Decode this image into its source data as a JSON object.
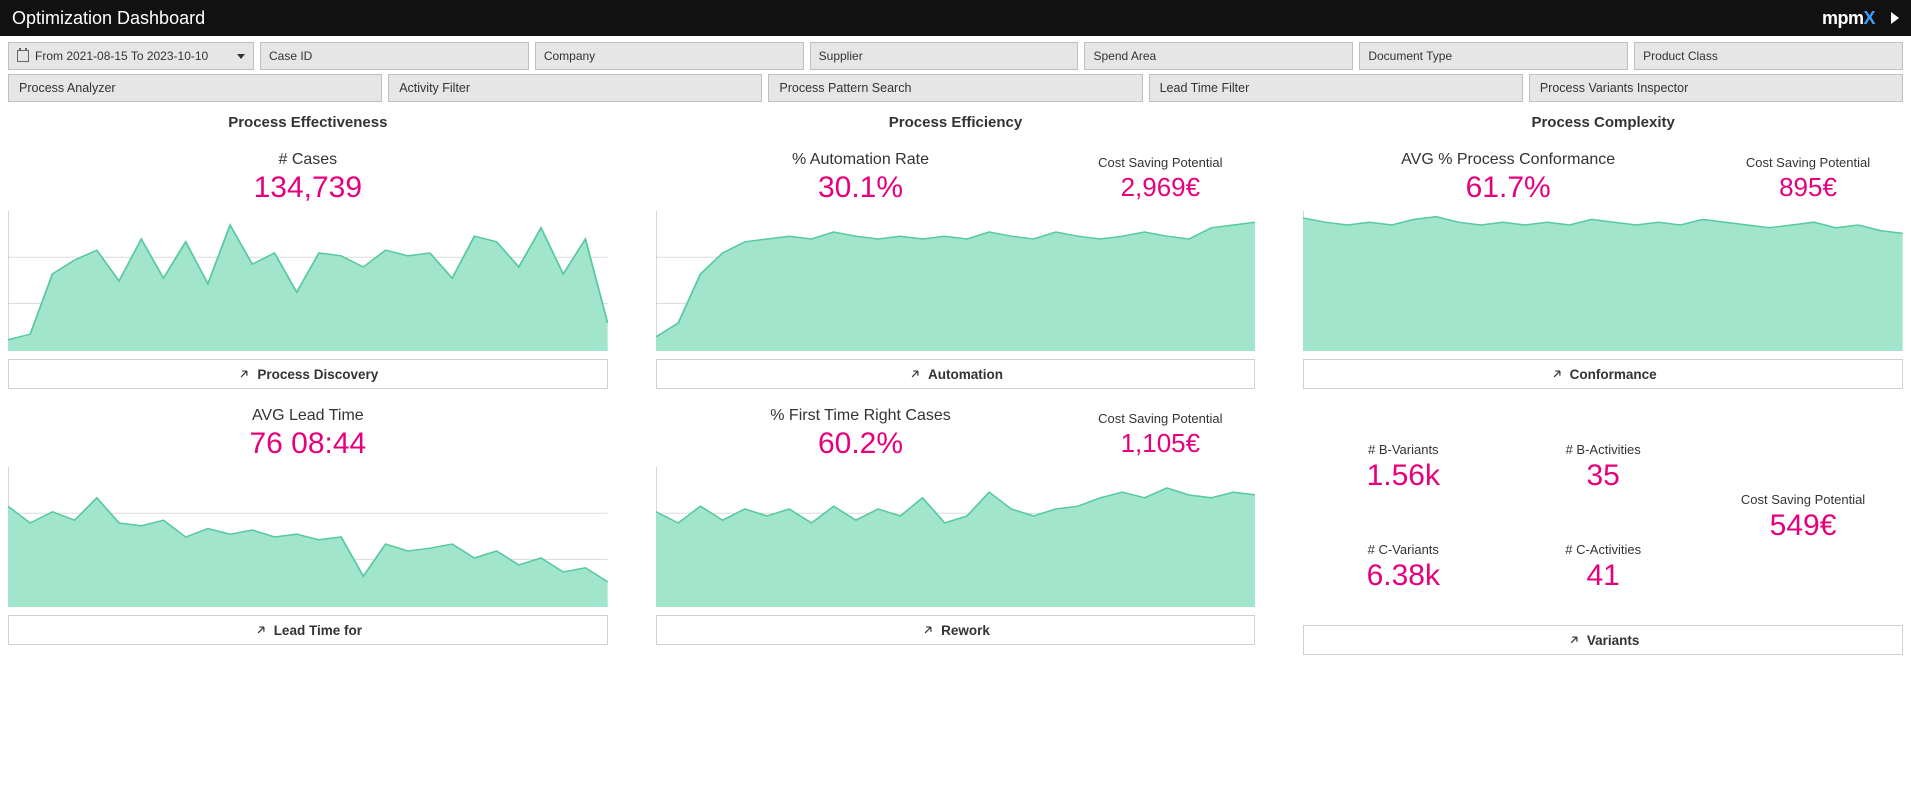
{
  "theme": {
    "accent": "#e6007e",
    "chart_fill": "#a1e6cc",
    "chart_stroke": "#58c9a0",
    "grid_color": "#dcdcdc",
    "axis_color": "#bfbfbf",
    "bg": "#ffffff"
  },
  "titlebar": {
    "title": "Optimization Dashboard",
    "logo_text": "mpm",
    "logo_x": "X"
  },
  "filters": {
    "date_text": "From 2021-08-15 To 2023-10-10",
    "fields": [
      "Case ID",
      "Company",
      "Supplier",
      "Spend Area",
      "Document Type",
      "Product Class"
    ]
  },
  "tools": [
    "Process Analyzer",
    "Activity Filter",
    "Process Pattern Search",
    "Lead Time Filter",
    "Process Variants Inspector"
  ],
  "sections": {
    "effectiveness": "Process Effectiveness",
    "efficiency": "Process Efficiency",
    "complexity": "Process Complexity"
  },
  "cost_saving_label": "Cost Saving Potential",
  "cards": {
    "cases": {
      "label": "# Cases",
      "value": "134,739",
      "link": "Process Discovery",
      "chart": {
        "type": "area",
        "ylim": [
          0,
          100
        ],
        "values": [
          8,
          12,
          55,
          65,
          72,
          50,
          80,
          52,
          78,
          48,
          90,
          62,
          70,
          42,
          70,
          68,
          60,
          72,
          68,
          70,
          52,
          82,
          78,
          60,
          88,
          55,
          80,
          20
        ]
      }
    },
    "automation": {
      "label": "% Automation Rate",
      "value": "30.1%",
      "cost": "2,969€",
      "link": "Automation",
      "chart": {
        "type": "area",
        "ylim": [
          0,
          100
        ],
        "values": [
          10,
          20,
          55,
          70,
          78,
          80,
          82,
          80,
          85,
          82,
          80,
          82,
          80,
          82,
          80,
          85,
          82,
          80,
          85,
          82,
          80,
          82,
          85,
          82,
          80,
          88,
          90,
          92
        ]
      }
    },
    "conformance": {
      "label": "AVG % Process Conformance",
      "value": "61.7%",
      "cost": "895€",
      "link": "Conformance",
      "chart": {
        "type": "area",
        "ylim": [
          0,
          100
        ],
        "values": [
          95,
          92,
          90,
          92,
          90,
          94,
          96,
          92,
          90,
          92,
          90,
          92,
          90,
          94,
          92,
          90,
          92,
          90,
          94,
          92,
          90,
          88,
          90,
          92,
          88,
          90,
          86,
          84
        ]
      }
    },
    "leadtime": {
      "label": "AVG Lead Time",
      "value": "76 08:44",
      "link": "Lead Time for",
      "chart": {
        "type": "area",
        "ylim": [
          0,
          100
        ],
        "values": [
          72,
          60,
          68,
          62,
          78,
          60,
          58,
          62,
          50,
          56,
          52,
          55,
          50,
          52,
          48,
          50,
          22,
          45,
          40,
          42,
          45,
          35,
          40,
          30,
          35,
          25,
          28,
          18
        ]
      }
    },
    "ftr": {
      "label": "% First Time Right Cases",
      "value": "60.2%",
      "cost": "1,105€",
      "link": "Rework",
      "chart": {
        "type": "area",
        "ylim": [
          0,
          100
        ],
        "values": [
          68,
          60,
          72,
          62,
          70,
          65,
          70,
          60,
          72,
          62,
          70,
          65,
          78,
          60,
          65,
          82,
          70,
          65,
          70,
          72,
          78,
          82,
          78,
          85,
          80,
          78,
          82,
          80
        ]
      }
    },
    "variants": {
      "link": "Variants",
      "cost": "549€",
      "metrics": [
        {
          "label": "# B-Variants",
          "value": "1.56k"
        },
        {
          "label": "# B-Activities",
          "value": "35"
        },
        {
          "label": "# C-Variants",
          "value": "6.38k"
        },
        {
          "label": "# C-Activities",
          "value": "41"
        }
      ]
    }
  }
}
